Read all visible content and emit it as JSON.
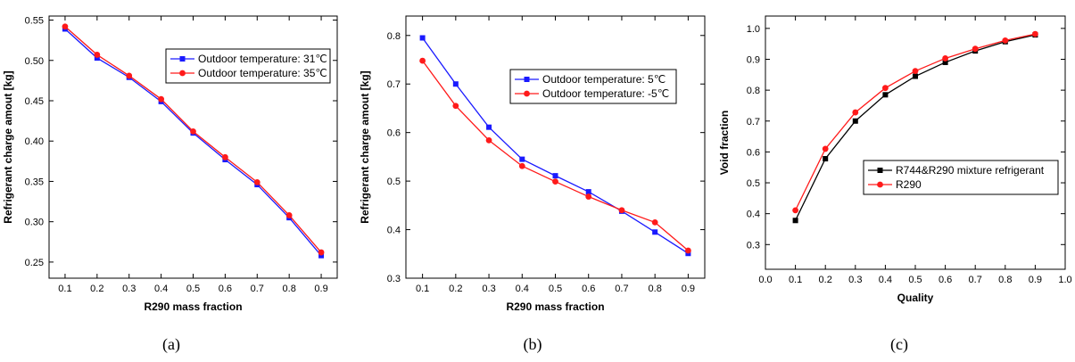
{
  "colors": {
    "blue": "#1a1aff",
    "red": "#ff1a1a",
    "black": "#000000"
  },
  "chart_data": [
    {
      "type": "line",
      "caption": "(a)",
      "xlabel": "R290 mass fraction",
      "ylabel": "Refrigerant charge amout [kg]",
      "xlim": [
        0.05,
        0.95
      ],
      "ylim": [
        0.23,
        0.555
      ],
      "xticks": [
        "0.1",
        "0.2",
        "0.3",
        "0.4",
        "0.5",
        "0.6",
        "0.7",
        "0.8",
        "0.9"
      ],
      "yticks": [
        "0.25",
        "0.30",
        "0.35",
        "0.40",
        "0.45",
        "0.50",
        "0.55"
      ],
      "legend_position": "top-right",
      "x": [
        0.1,
        0.2,
        0.3,
        0.4,
        0.5,
        0.6,
        0.7,
        0.8,
        0.9
      ],
      "series": [
        {
          "name": "Outdoor temperature: 31℃",
          "color": "#1a1aff",
          "marker": "square",
          "values": [
            0.539,
            0.503,
            0.479,
            0.449,
            0.41,
            0.377,
            0.346,
            0.305,
            0.258
          ]
        },
        {
          "name": "Outdoor temperature: 35℃",
          "color": "#ff1a1a",
          "marker": "circle",
          "values": [
            0.542,
            0.507,
            0.481,
            0.452,
            0.412,
            0.38,
            0.349,
            0.308,
            0.262
          ]
        }
      ]
    },
    {
      "type": "line",
      "caption": "(b)",
      "xlabel": "R290 mass fraction",
      "ylabel": "Refrigerant charge amout [kg]",
      "xlim": [
        0.05,
        0.95
      ],
      "ylim": [
        0.3,
        0.84
      ],
      "xticks": [
        "0.1",
        "0.2",
        "0.3",
        "0.4",
        "0.5",
        "0.6",
        "0.7",
        "0.8",
        "0.9"
      ],
      "yticks": [
        "0.3",
        "0.4",
        "0.5",
        "0.6",
        "0.7",
        "0.8"
      ],
      "legend_position": "top-right",
      "x": [
        0.1,
        0.2,
        0.3,
        0.4,
        0.5,
        0.6,
        0.7,
        0.8,
        0.9
      ],
      "series": [
        {
          "name": "Outdoor temperature: 5℃",
          "color": "#1a1aff",
          "marker": "square",
          "values": [
            0.795,
            0.7,
            0.611,
            0.545,
            0.511,
            0.478,
            0.438,
            0.395,
            0.351
          ]
        },
        {
          "name": "Outdoor temperature: -5℃",
          "color": "#ff1a1a",
          "marker": "circle",
          "values": [
            0.748,
            0.655,
            0.584,
            0.531,
            0.499,
            0.468,
            0.44,
            0.415,
            0.357
          ]
        }
      ]
    },
    {
      "type": "line",
      "caption": "(c)",
      "xlabel": "Quality",
      "ylabel": "Void fraction",
      "xlim": [
        0.0,
        1.0
      ],
      "ylim": [
        0.22,
        1.04
      ],
      "xticks": [
        "0.0",
        "0.1",
        "0.2",
        "0.3",
        "0.4",
        "0.5",
        "0.6",
        "0.7",
        "0.8",
        "0.9",
        "1.0"
      ],
      "yticks": [
        "0.3",
        "0.4",
        "0.5",
        "0.6",
        "0.7",
        "0.8",
        "0.9",
        "1.0"
      ],
      "legend_position": "bottom-right",
      "x": [
        0.1,
        0.2,
        0.3,
        0.4,
        0.5,
        0.6,
        0.7,
        0.8,
        0.9
      ],
      "series": [
        {
          "name": "R744&R290 mixture refrigerant",
          "color": "#000000",
          "marker": "square",
          "values": [
            0.378,
            0.578,
            0.7,
            0.785,
            0.845,
            0.89,
            0.927,
            0.957,
            0.979
          ]
        },
        {
          "name": "R290",
          "color": "#ff1a1a",
          "marker": "circle",
          "values": [
            0.411,
            0.61,
            0.728,
            0.807,
            0.862,
            0.903,
            0.934,
            0.961,
            0.982
          ]
        }
      ]
    }
  ]
}
